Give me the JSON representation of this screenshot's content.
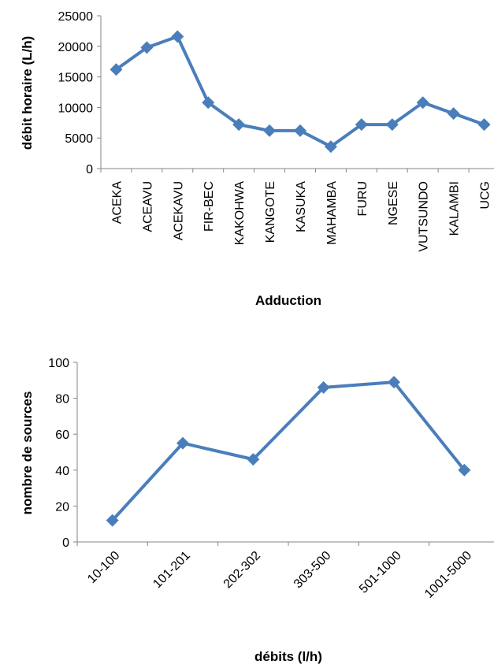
{
  "chart_data": [
    {
      "type": "line",
      "categories": [
        "ACEKA",
        "ACEAVU",
        "ACEKAVU",
        "FIR-BEC",
        "KAKOHWA",
        "KANGOTE",
        "KASUKA",
        "MAHAMBA",
        "FURU",
        "NGESE",
        "VUTSUNDO",
        "KALAMBI",
        "UCG"
      ],
      "series": [
        {
          "values": [
            16200,
            19800,
            21600,
            10800,
            7200,
            6200,
            6200,
            3600,
            7200,
            7200,
            10800,
            9000,
            7200
          ]
        }
      ],
      "xlabel": "Adduction",
      "ylabel": "débit horaire (L/h)",
      "ylim": [
        0,
        25000
      ],
      "yticks": [
        "0",
        "5000",
        "10000",
        "15000",
        "20000",
        "25000"
      ],
      "grid": false,
      "legend": "none",
      "color": "#4a7ebb",
      "marker": "diamond"
    },
    {
      "type": "line",
      "categories": [
        "10-100",
        "101-201",
        "202-302",
        "303-500",
        "501-1000",
        "1001-5000"
      ],
      "series": [
        {
          "values": [
            12,
            55,
            46,
            86,
            89,
            40
          ]
        }
      ],
      "xlabel": "débits (l/h)",
      "ylabel": "nombre de sources",
      "ylim": [
        0,
        100
      ],
      "yticks": [
        "0",
        "20",
        "40",
        "60",
        "80",
        "100"
      ],
      "grid": false,
      "legend": "none",
      "color": "#4a7ebb",
      "marker": "diamond"
    }
  ]
}
